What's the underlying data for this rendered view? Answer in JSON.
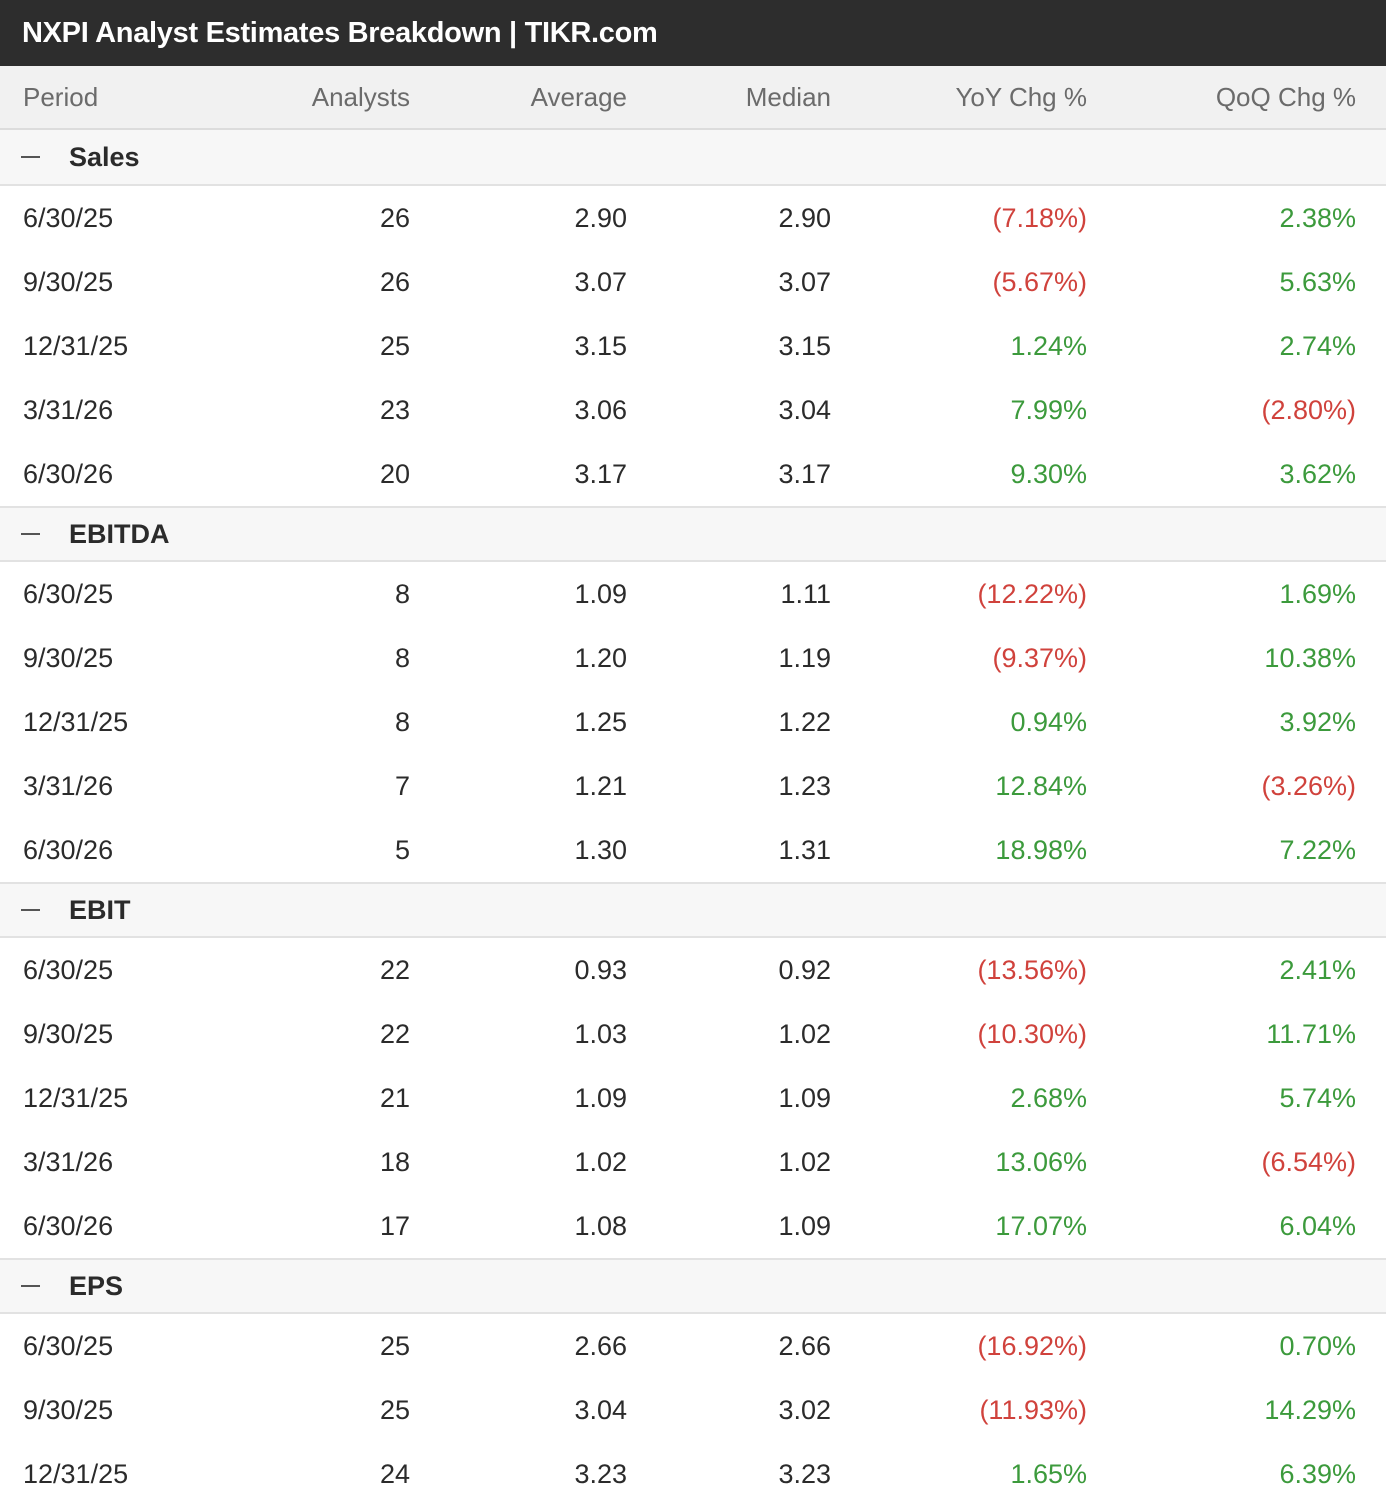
{
  "title": "NXPI Analyst Estimates Breakdown | TIKR.com",
  "columns": {
    "period": "Period",
    "analysts": "Analysts",
    "average": "Average",
    "median": "Median",
    "yoy": "YoY Chg %",
    "qoq": "QoQ Chg %"
  },
  "colors": {
    "negative": "#d0423c",
    "positive": "#3c9a3c",
    "title_bar": "#2d2d2d"
  },
  "sections": [
    {
      "label": "Sales",
      "rows": [
        {
          "period": "6/30/25",
          "analysts": "26",
          "average": "2.90",
          "median": "2.90",
          "yoy": "(7.18%)",
          "qoq": "2.38%"
        },
        {
          "period": "9/30/25",
          "analysts": "26",
          "average": "3.07",
          "median": "3.07",
          "yoy": "(5.67%)",
          "qoq": "5.63%"
        },
        {
          "period": "12/31/25",
          "analysts": "25",
          "average": "3.15",
          "median": "3.15",
          "yoy": "1.24%",
          "qoq": "2.74%"
        },
        {
          "period": "3/31/26",
          "analysts": "23",
          "average": "3.06",
          "median": "3.04",
          "yoy": "7.99%",
          "qoq": "(2.80%)"
        },
        {
          "period": "6/30/26",
          "analysts": "20",
          "average": "3.17",
          "median": "3.17",
          "yoy": "9.30%",
          "qoq": "3.62%"
        }
      ]
    },
    {
      "label": "EBITDA",
      "rows": [
        {
          "period": "6/30/25",
          "analysts": "8",
          "average": "1.09",
          "median": "1.11",
          "yoy": "(12.22%)",
          "qoq": "1.69%"
        },
        {
          "period": "9/30/25",
          "analysts": "8",
          "average": "1.20",
          "median": "1.19",
          "yoy": "(9.37%)",
          "qoq": "10.38%"
        },
        {
          "period": "12/31/25",
          "analysts": "8",
          "average": "1.25",
          "median": "1.22",
          "yoy": "0.94%",
          "qoq": "3.92%"
        },
        {
          "period": "3/31/26",
          "analysts": "7",
          "average": "1.21",
          "median": "1.23",
          "yoy": "12.84%",
          "qoq": "(3.26%)"
        },
        {
          "period": "6/30/26",
          "analysts": "5",
          "average": "1.30",
          "median": "1.31",
          "yoy": "18.98%",
          "qoq": "7.22%"
        }
      ]
    },
    {
      "label": "EBIT",
      "rows": [
        {
          "period": "6/30/25",
          "analysts": "22",
          "average": "0.93",
          "median": "0.92",
          "yoy": "(13.56%)",
          "qoq": "2.41%"
        },
        {
          "period": "9/30/25",
          "analysts": "22",
          "average": "1.03",
          "median": "1.02",
          "yoy": "(10.30%)",
          "qoq": "11.71%"
        },
        {
          "period": "12/31/25",
          "analysts": "21",
          "average": "1.09",
          "median": "1.09",
          "yoy": "2.68%",
          "qoq": "5.74%"
        },
        {
          "period": "3/31/26",
          "analysts": "18",
          "average": "1.02",
          "median": "1.02",
          "yoy": "13.06%",
          "qoq": "(6.54%)"
        },
        {
          "period": "6/30/26",
          "analysts": "17",
          "average": "1.08",
          "median": "1.09",
          "yoy": "17.07%",
          "qoq": "6.04%"
        }
      ]
    },
    {
      "label": "EPS",
      "rows": [
        {
          "period": "6/30/25",
          "analysts": "25",
          "average": "2.66",
          "median": "2.66",
          "yoy": "(16.92%)",
          "qoq": "0.70%"
        },
        {
          "period": "9/30/25",
          "analysts": "25",
          "average": "3.04",
          "median": "3.02",
          "yoy": "(11.93%)",
          "qoq": "14.29%"
        },
        {
          "period": "12/31/25",
          "analysts": "24",
          "average": "3.23",
          "median": "3.23",
          "yoy": "1.65%",
          "qoq": "6.39%"
        }
      ]
    }
  ]
}
